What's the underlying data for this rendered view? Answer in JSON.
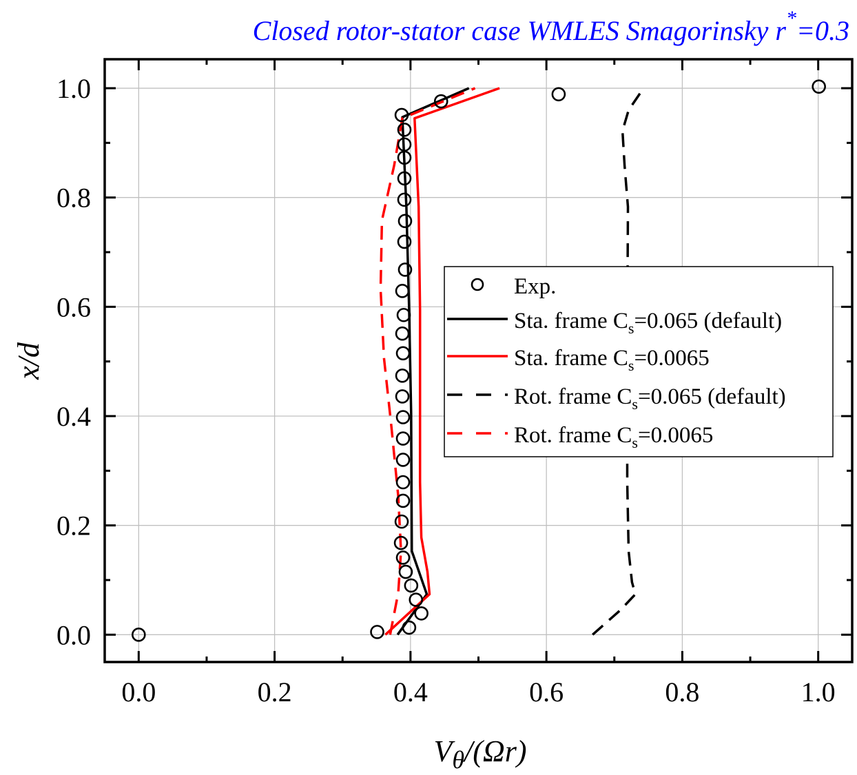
{
  "chart_data": {
    "type": "line",
    "title": "Closed rotor-stator case WMLES Smagorinsky r",
    "title_superscript": "*",
    "title_suffix": "=0.3",
    "title_color": "#0000ff",
    "xlabel": "Vθ/(Ωr)",
    "xlabel_parts": {
      "main": "V",
      "sub": "θ",
      "rest": "/(Ωr)"
    },
    "ylabel": "x/d",
    "xlim": [
      -0.05,
      1.05
    ],
    "ylim": [
      -0.05,
      1.053
    ],
    "xticks": [
      0.0,
      0.2,
      0.4,
      0.6,
      0.8,
      1.0
    ],
    "xtick_labels": [
      "0.0",
      "0.2",
      "0.4",
      "0.6",
      "0.8",
      "1.0"
    ],
    "xminor": [
      0.1,
      0.3,
      0.5,
      0.7,
      0.9
    ],
    "yticks": [
      0.0,
      0.2,
      0.4,
      0.6,
      0.8,
      1.0
    ],
    "ytick_labels": [
      "0.0",
      "0.2",
      "0.4",
      "0.6",
      "0.8",
      "1.0"
    ],
    "yminor": [
      0.1,
      0.3,
      0.5,
      0.7,
      0.9
    ],
    "grid": true,
    "legend_position": "center-right",
    "series": [
      {
        "name": "Exp.",
        "legend_label": "Exp.",
        "kind": "scatter",
        "marker": "open-circle",
        "color": "#000000",
        "points": [
          [
            0.0,
            0.0
          ],
          [
            0.351,
            0.005
          ],
          [
            0.398,
            0.013
          ],
          [
            0.416,
            0.039
          ],
          [
            0.408,
            0.064
          ],
          [
            0.401,
            0.09
          ],
          [
            0.393,
            0.115
          ],
          [
            0.389,
            0.141
          ],
          [
            0.386,
            0.168
          ],
          [
            0.387,
            0.207
          ],
          [
            0.389,
            0.245
          ],
          [
            0.389,
            0.279
          ],
          [
            0.389,
            0.32
          ],
          [
            0.389,
            0.359
          ],
          [
            0.389,
            0.398
          ],
          [
            0.388,
            0.436
          ],
          [
            0.388,
            0.474
          ],
          [
            0.389,
            0.515
          ],
          [
            0.388,
            0.551
          ],
          [
            0.39,
            0.585
          ],
          [
            0.388,
            0.629
          ],
          [
            0.392,
            0.668
          ],
          [
            0.391,
            0.719
          ],
          [
            0.392,
            0.757
          ],
          [
            0.391,
            0.796
          ],
          [
            0.391,
            0.835
          ],
          [
            0.391,
            0.873
          ],
          [
            0.391,
            0.897
          ],
          [
            0.391,
            0.924
          ],
          [
            0.387,
            0.951
          ],
          [
            0.445,
            0.976
          ],
          [
            0.618,
            0.989
          ],
          [
            1.001,
            1.003
          ]
        ]
      },
      {
        "name": "Sta. frame Cs=0.065 (default)",
        "legend_label": {
          "pre": "Sta. frame C",
          "sub": "s",
          "post": "=0.065 (default)"
        },
        "kind": "line",
        "dash": "solid",
        "color": "#000000",
        "points": [
          [
            0.381,
            0.0
          ],
          [
            0.424,
            0.074
          ],
          [
            0.402,
            0.153
          ],
          [
            0.401,
            0.405
          ],
          [
            0.398,
            0.594
          ],
          [
            0.394,
            0.783
          ],
          [
            0.388,
            0.947
          ],
          [
            0.486,
            1.0
          ]
        ]
      },
      {
        "name": "Sta. frame Cs=0.0065",
        "legend_label": {
          "pre": "Sta. frame C",
          "sub": "s",
          "post": "=0.0065"
        },
        "kind": "line",
        "dash": "solid",
        "color": "#ff0000",
        "points": [
          [
            0.363,
            0.0
          ],
          [
            0.428,
            0.074
          ],
          [
            0.425,
            0.115
          ],
          [
            0.416,
            0.178
          ],
          [
            0.414,
            0.279
          ],
          [
            0.414,
            0.594
          ],
          [
            0.412,
            0.783
          ],
          [
            0.406,
            0.945
          ],
          [
            0.531,
            1.0
          ]
        ]
      },
      {
        "name": "Rot. frame Cs=0.065 (default)",
        "legend_label": {
          "pre": "Rot. frame C",
          "sub": "s",
          "post": "=0.065 (default)"
        },
        "kind": "line",
        "dash": "dashed",
        "color": "#000000",
        "points": [
          [
            0.668,
            0.0
          ],
          [
            0.709,
            0.045
          ],
          [
            0.731,
            0.074
          ],
          [
            0.726,
            0.096
          ],
          [
            0.721,
            0.153
          ],
          [
            0.719,
            0.279
          ],
          [
            0.719,
            0.531
          ],
          [
            0.72,
            0.783
          ],
          [
            0.715,
            0.859
          ],
          [
            0.712,
            0.922
          ],
          [
            0.721,
            0.96
          ],
          [
            0.743,
            1.0
          ]
        ]
      },
      {
        "name": "Rot. frame Cs=0.0065",
        "legend_label": {
          "pre": "Rot. frame C",
          "sub": "s",
          "post": "=0.0065"
        },
        "kind": "line",
        "dash": "dashed",
        "color": "#ff0000",
        "points": [
          [
            0.37,
            0.0
          ],
          [
            0.382,
            0.077
          ],
          [
            0.386,
            0.153
          ],
          [
            0.382,
            0.253
          ],
          [
            0.372,
            0.38
          ],
          [
            0.361,
            0.506
          ],
          [
            0.356,
            0.632
          ],
          [
            0.358,
            0.758
          ],
          [
            0.376,
            0.859
          ],
          [
            0.388,
            0.945
          ],
          [
            0.495,
            1.0
          ]
        ]
      }
    ]
  }
}
